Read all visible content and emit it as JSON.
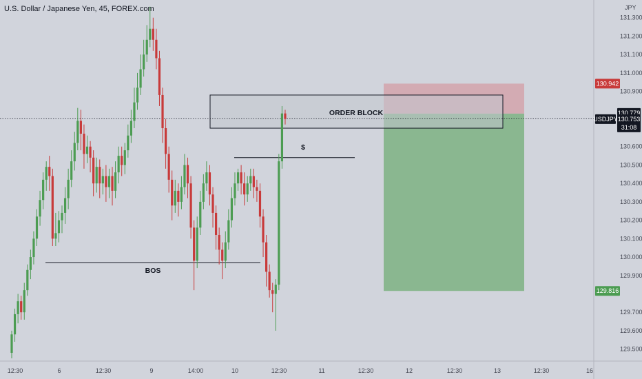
{
  "header": {
    "title": "U.S. Dollar / Japanese Yen, 45, FOREX.com",
    "currency": "JPY"
  },
  "colors": {
    "background": "#d1d4dc",
    "bull": "#4c9c52",
    "bear": "#c83a3a",
    "profit_zone": "#82b487",
    "loss_zone": "#d3a3ab",
    "order_block": "#c3c6cd",
    "price_tag": "#131722",
    "target_tag": "#4c9c52",
    "stop_tag": "#c83a3a"
  },
  "chart_data": {
    "type": "candlestick",
    "symbol": "USDJPY",
    "ylim": [
      129.45,
      131.37
    ],
    "y_ticks": [
      "131.300",
      "131.200",
      "131.100",
      "131.000",
      "130.900",
      "130.600",
      "130.500",
      "130.400",
      "130.300",
      "130.200",
      "130.100",
      "130.000",
      "129.900",
      "129.700",
      "129.600",
      "129.500"
    ],
    "x_ticks": [
      "12:30",
      "6",
      "12:30",
      "9",
      "14:00",
      "10",
      "12:30",
      "11",
      "12:30",
      "12",
      "12:30",
      "13",
      "12:30",
      "16"
    ],
    "price_labels": {
      "stop": "130.942",
      "entry": "130.779",
      "current": "130.753",
      "countdown": "31:08",
      "symbol": "USDJPY",
      "target": "129.816"
    },
    "annotations": {
      "order_block": "ORDER BLOCK",
      "dollar": "$",
      "bos": "BOS"
    },
    "levels": {
      "bos": 129.97,
      "liquidity": 130.54,
      "order_block_top": 130.88,
      "order_block_bottom": 130.7,
      "entry": 130.779,
      "stop": 130.942,
      "target": 129.816,
      "current": 130.753
    },
    "candles": [
      [
        129.48,
        129.58,
        129.45,
        129.6
      ],
      [
        129.58,
        129.69,
        129.54,
        129.72
      ],
      [
        129.69,
        129.76,
        129.64,
        129.8
      ],
      [
        129.76,
        129.7,
        129.66,
        129.79
      ],
      [
        129.7,
        129.82,
        129.66,
        129.86
      ],
      [
        129.82,
        129.93,
        129.79,
        129.96
      ],
      [
        129.93,
        130.0,
        129.88,
        130.04
      ],
      [
        130.0,
        130.1,
        129.96,
        130.14
      ],
      [
        130.1,
        130.22,
        130.06,
        130.26
      ],
      [
        130.22,
        130.31,
        130.17,
        130.36
      ],
      [
        130.31,
        130.42,
        130.26,
        130.46
      ],
      [
        130.42,
        130.49,
        130.36,
        130.52
      ],
      [
        130.49,
        130.44,
        130.36,
        130.55
      ],
      [
        130.44,
        130.1,
        130.06,
        130.48
      ],
      [
        130.1,
        130.13,
        130.06,
        130.24
      ],
      [
        130.13,
        130.2,
        130.08,
        130.25
      ],
      [
        130.2,
        130.24,
        130.13,
        130.28
      ],
      [
        130.24,
        130.32,
        130.18,
        130.38
      ],
      [
        130.32,
        130.42,
        130.26,
        130.48
      ],
      [
        130.42,
        130.52,
        130.38,
        130.58
      ],
      [
        130.52,
        130.62,
        130.47,
        130.68
      ],
      [
        130.62,
        130.74,
        130.58,
        130.81
      ],
      [
        130.74,
        130.67,
        130.58,
        130.8
      ],
      [
        130.67,
        130.56,
        130.48,
        130.72
      ],
      [
        130.56,
        130.6,
        130.51,
        130.66
      ],
      [
        130.6,
        130.54,
        130.46,
        130.63
      ],
      [
        130.54,
        130.4,
        130.33,
        130.58
      ],
      [
        130.4,
        130.49,
        130.35,
        130.54
      ],
      [
        130.49,
        130.4,
        130.32,
        130.53
      ],
      [
        130.4,
        130.44,
        130.34,
        130.48
      ],
      [
        130.44,
        130.38,
        130.3,
        130.5
      ],
      [
        130.38,
        130.44,
        130.32,
        130.48
      ],
      [
        130.44,
        130.36,
        130.28,
        130.49
      ],
      [
        130.36,
        130.46,
        130.32,
        130.52
      ],
      [
        130.46,
        130.55,
        130.4,
        130.6
      ],
      [
        130.55,
        130.5,
        130.44,
        130.6
      ],
      [
        130.5,
        130.58,
        130.45,
        130.62
      ],
      [
        130.58,
        130.66,
        130.54,
        130.72
      ],
      [
        130.66,
        130.74,
        130.62,
        130.8
      ],
      [
        130.74,
        130.84,
        130.7,
        130.92
      ],
      [
        130.84,
        130.92,
        130.8,
        131.0
      ],
      [
        130.92,
        131.02,
        130.88,
        131.1
      ],
      [
        131.02,
        131.1,
        130.98,
        131.18
      ],
      [
        131.1,
        131.18,
        131.06,
        131.26
      ],
      [
        131.18,
        131.24,
        131.14,
        131.36
      ],
      [
        131.24,
        131.18,
        131.12,
        131.3
      ],
      [
        131.18,
        131.08,
        131.02,
        131.24
      ],
      [
        131.08,
        130.88,
        130.82,
        131.12
      ],
      [
        130.88,
        130.7,
        130.62,
        130.92
      ],
      [
        130.7,
        130.56,
        130.48,
        130.75
      ],
      [
        130.56,
        130.42,
        130.35,
        130.6
      ],
      [
        130.42,
        130.28,
        130.2,
        130.47
      ],
      [
        130.28,
        130.36,
        130.24,
        130.42
      ],
      [
        130.36,
        130.3,
        130.22,
        130.4
      ],
      [
        130.3,
        130.38,
        130.26,
        130.44
      ],
      [
        130.38,
        130.5,
        130.34,
        130.56
      ],
      [
        130.5,
        130.4,
        130.32,
        130.54
      ],
      [
        130.4,
        130.16,
        130.1,
        130.44
      ],
      [
        130.16,
        129.98,
        129.82,
        130.2
      ],
      [
        129.98,
        130.16,
        129.94,
        130.22
      ],
      [
        130.16,
        130.3,
        130.12,
        130.36
      ],
      [
        130.3,
        130.4,
        130.26,
        130.45
      ],
      [
        130.4,
        130.46,
        130.36,
        130.52
      ],
      [
        130.46,
        130.34,
        130.28,
        130.5
      ],
      [
        130.34,
        130.24,
        130.16,
        130.38
      ],
      [
        130.24,
        130.12,
        130.04,
        130.28
      ],
      [
        130.12,
        130.04,
        129.96,
        130.16
      ],
      [
        130.04,
        129.98,
        129.88,
        130.08
      ],
      [
        129.98,
        130.08,
        129.94,
        130.14
      ],
      [
        130.08,
        130.2,
        130.04,
        130.26
      ],
      [
        130.2,
        130.32,
        130.16,
        130.38
      ],
      [
        130.32,
        130.4,
        130.28,
        130.46
      ],
      [
        130.4,
        130.46,
        130.36,
        130.48
      ],
      [
        130.46,
        130.4,
        130.34,
        130.5
      ],
      [
        130.4,
        130.34,
        130.28,
        130.46
      ],
      [
        130.34,
        130.4,
        130.3,
        130.44
      ],
      [
        130.4,
        130.44,
        130.36,
        130.48
      ],
      [
        130.44,
        130.38,
        130.32,
        130.48
      ],
      [
        130.38,
        130.36,
        130.3,
        130.42
      ],
      [
        130.36,
        130.22,
        130.16,
        130.4
      ],
      [
        130.22,
        130.08,
        130.0,
        130.26
      ],
      [
        130.08,
        129.92,
        129.84,
        130.12
      ],
      [
        129.92,
        129.82,
        129.78,
        129.96
      ],
      [
        129.82,
        129.8,
        129.7,
        129.86
      ],
      [
        129.8,
        129.85,
        129.6,
        129.88
      ],
      [
        129.85,
        130.52,
        129.82,
        130.56
      ],
      [
        130.52,
        130.78,
        130.48,
        130.82
      ],
      [
        130.78,
        130.75,
        130.72,
        130.8
      ]
    ]
  }
}
